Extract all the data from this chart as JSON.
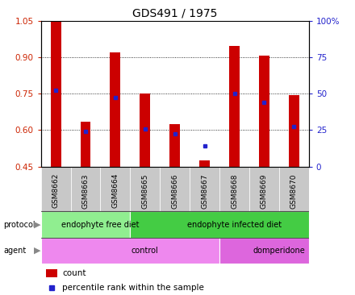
{
  "title": "GDS491 / 1975",
  "samples": [
    "GSM8662",
    "GSM8663",
    "GSM8664",
    "GSM8665",
    "GSM8666",
    "GSM8667",
    "GSM8668",
    "GSM8669",
    "GSM8670"
  ],
  "count_values": [
    1.05,
    0.635,
    0.92,
    0.75,
    0.625,
    0.475,
    0.945,
    0.905,
    0.745
  ],
  "percentile_values": [
    0.765,
    0.595,
    0.735,
    0.605,
    0.585,
    0.535,
    0.75,
    0.715,
    0.615
  ],
  "ylim": [
    0.45,
    1.05
  ],
  "yticks_left": [
    0.45,
    0.6,
    0.75,
    0.9,
    1.05
  ],
  "yticks_right_pct": [
    0,
    25,
    50,
    75,
    100
  ],
  "protocol_groups": [
    {
      "label": "endophyte free diet",
      "start": 0,
      "end": 3,
      "color": "#90EE90"
    },
    {
      "label": "endophyte infected diet",
      "start": 3,
      "end": 9,
      "color": "#44CC44"
    }
  ],
  "agent_groups": [
    {
      "label": "control",
      "start": 0,
      "end": 6,
      "color": "#EE88EE"
    },
    {
      "label": "domperidone",
      "start": 6,
      "end": 9,
      "color": "#DD66DD"
    }
  ],
  "bar_color": "#CC0000",
  "dot_color": "#2222CC",
  "background_color": "#ffffff",
  "tick_color_left": "#CC2200",
  "tick_color_right": "#2222CC",
  "bar_width": 0.35,
  "xticklabel_bg": "#C8C8C8",
  "grid_color": "#000000",
  "legend_count_color": "#CC0000",
  "legend_dot_color": "#2222CC",
  "label_arrow_color": "#888888"
}
